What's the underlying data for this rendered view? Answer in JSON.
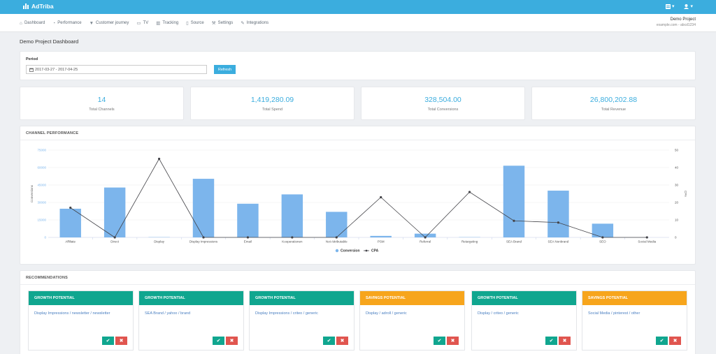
{
  "app": {
    "brand": "AdTriba"
  },
  "topbar": {
    "icons": [
      "grid-icon",
      "user-icon"
    ],
    "caret": "▾"
  },
  "nav": {
    "items": [
      {
        "label": "Dashboard",
        "icon": "home-icon",
        "glyph": "⌂"
      },
      {
        "label": "Performance",
        "icon": "dashboard-icon",
        "glyph": "◔"
      },
      {
        "label": "Customer journey",
        "icon": "filter-icon",
        "glyph": "▼"
      },
      {
        "label": "TV",
        "icon": "tv-icon",
        "glyph": "▭"
      },
      {
        "label": "Tracking",
        "icon": "chart-icon",
        "glyph": "▥"
      },
      {
        "label": "Source",
        "icon": "file-icon",
        "glyph": "▯"
      },
      {
        "label": "Settings",
        "icon": "wrench-icon",
        "glyph": "⚒"
      },
      {
        "label": "Integrations",
        "icon": "plug-icon",
        "glyph": "✎"
      }
    ]
  },
  "project": {
    "name": "Demo Project",
    "domain": "example.com - abcd1234"
  },
  "page": {
    "title": "Demo Project Dashboard"
  },
  "period": {
    "label": "Period",
    "value": "2017-03-27 - 2017-04-25",
    "button": "Refresh",
    "icon": "calendar-icon"
  },
  "stats": [
    {
      "value": "14",
      "label": "Total Channels"
    },
    {
      "value": "1,419,280.09",
      "label": "Total Spend"
    },
    {
      "value": "328,504.00",
      "label": "Total Conversions"
    },
    {
      "value": "26,800,202.88",
      "label": "Total Revenue"
    }
  ],
  "chart_section": {
    "title": "CHANNEL PERFORMANCE"
  },
  "chart_data": {
    "type": "bar",
    "categories": [
      "Affiliate",
      "Direct",
      "Display",
      "Display Impressions",
      "Email",
      "Kooperationen",
      "Not Attributable",
      "PSM",
      "Referral",
      "Retargeting",
      "SEA Brand",
      "SEA Nonbrand",
      "SEO",
      "Social Media"
    ],
    "series": [
      {
        "name": "Conversion",
        "kind": "bar",
        "axis": "left",
        "color": "#7cb5ec",
        "values": [
          23000,
          40000,
          200,
          47000,
          27000,
          34500,
          20500,
          1200,
          3000,
          200,
          57500,
          37500,
          11000,
          0
        ]
      },
      {
        "name": "CPA",
        "kind": "line",
        "axis": "right",
        "color": "#434348",
        "values": [
          17,
          0,
          45,
          0,
          0,
          0,
          0,
          23,
          0,
          26,
          9.5,
          8.5,
          0,
          0
        ]
      }
    ],
    "ylabel": "Conversions",
    "y2label": "CPA",
    "ylim": [
      0,
      70000
    ],
    "y2lim": [
      0,
      50
    ],
    "yticks": [
      "0",
      "15000",
      "30000",
      "45000",
      "60000",
      "75000"
    ],
    "y2ticks": [
      "0",
      "10",
      "20",
      "30",
      "40",
      "50"
    ],
    "legend": "bottom-center",
    "grid": true
  },
  "recommendations": {
    "title": "RECOMMENDATIONS",
    "items": [
      {
        "type": "GROWTH POTENTIAL",
        "color": "#10a68f",
        "text": "Display Impressions / newsletter / newsletter"
      },
      {
        "type": "GROWTH POTENTIAL",
        "color": "#10a68f",
        "text": "SEA Brand / yahoo / brand"
      },
      {
        "type": "GROWTH POTENTIAL",
        "color": "#10a68f",
        "text": "Display Impressions / criteo / generic"
      },
      {
        "type": "SAVINGS POTENTIAL",
        "color": "#f7a51c",
        "text": "Display / adroll / generic"
      },
      {
        "type": "GROWTH POTENTIAL",
        "color": "#10a68f",
        "text": "Display / criteo / generic"
      },
      {
        "type": "SAVINGS POTENTIAL",
        "color": "#f7a51c",
        "text": "Social Media / pinterest / other"
      }
    ],
    "accept_icon": "✔",
    "reject_icon": "✖"
  }
}
